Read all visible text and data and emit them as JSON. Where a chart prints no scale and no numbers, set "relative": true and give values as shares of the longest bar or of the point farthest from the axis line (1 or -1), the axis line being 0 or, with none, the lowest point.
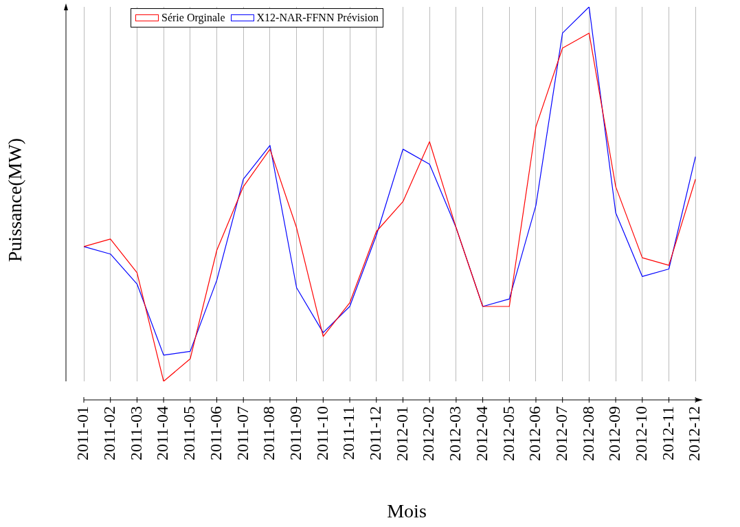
{
  "chart_data": {
    "type": "line",
    "relative": true,
    "xlabel": "Mois",
    "ylabel": "Puissance(MW)",
    "grid": "x",
    "legend": "top",
    "marker": "none",
    "categories": [
      "2011-01",
      "2011-02",
      "2011-03",
      "2011-04",
      "2011-05",
      "2011-06",
      "2011-07",
      "2011-08",
      "2011-09",
      "2011-10",
      "2011-11",
      "2011-12",
      "2012-01",
      "2012-02",
      "2012-03",
      "2012-04",
      "2012-05",
      "2012-06",
      "2012-07",
      "2012-08",
      "2012-09",
      "2012-10",
      "2012-11",
      "2012-12"
    ],
    "series": [
      {
        "name": "Série Orginale",
        "color": "#ff0000",
        "values": [
          0.36,
          0.38,
          0.29,
          0,
          0.06,
          0.35,
          0.52,
          0.62,
          0.41,
          0.12,
          0.21,
          0.4,
          0.48,
          0.64,
          0.41,
          0.2,
          0.2,
          0.68,
          0.89,
          0.93,
          0.52,
          0.33,
          0.31,
          0.54
        ]
      },
      {
        "name": "X12-NAR-FFNN Prévision",
        "color": "#0000ff",
        "values": [
          0.36,
          0.34,
          0.26,
          0.07,
          0.08,
          0.27,
          0.54,
          0.63,
          0.25,
          0.13,
          0.2,
          0.39,
          0.62,
          0.58,
          0.41,
          0.2,
          0.22,
          0.47,
          0.93,
          1,
          0.45,
          0.28,
          0.3,
          0.6
        ]
      }
    ]
  }
}
